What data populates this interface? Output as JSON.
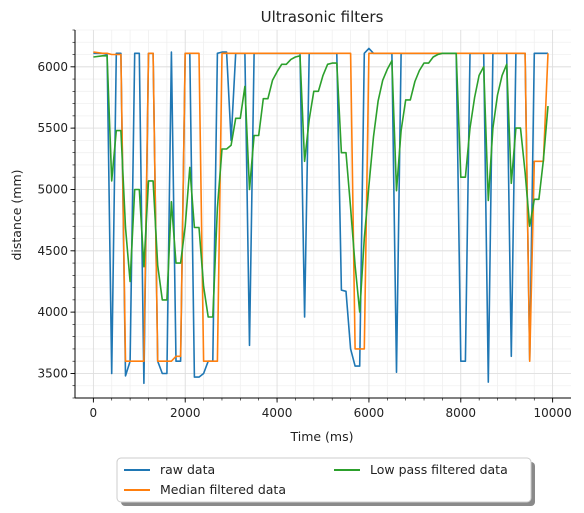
{
  "chart_data": {
    "type": "line",
    "title": "Ultrasonic filters",
    "xlabel": "Time (ms)",
    "ylabel": "distance (mm)",
    "xlim": [
      -400,
      10400
    ],
    "ylim": [
      3300,
      6300
    ],
    "xticks": [
      0,
      2000,
      4000,
      6000,
      8000,
      10000
    ],
    "yticks": [
      3500,
      4000,
      4500,
      5000,
      5500,
      6000
    ],
    "grid": true,
    "legend_position": "below-center",
    "series": [
      {
        "name": "raw data",
        "color": "#1f77b4",
        "x": [
          0,
          200,
          300,
          400,
          500,
          600,
          700,
          800,
          900,
          1000,
          1100,
          1200,
          1300,
          1400,
          1500,
          1600,
          1700,
          1800,
          1900,
          2000,
          2100,
          2200,
          2300,
          2400,
          2500,
          2600,
          2700,
          2800,
          2900,
          3000,
          3100,
          3200,
          3300,
          3400,
          3500,
          3600,
          3700,
          3800,
          3900,
          4000,
          4100,
          4200,
          4300,
          4400,
          4500,
          4600,
          4700,
          4800,
          4900,
          5000,
          5100,
          5200,
          5300,
          5400,
          5500,
          5600,
          5700,
          5800,
          5900,
          6000,
          6100,
          6200,
          6300,
          6400,
          6500,
          6600,
          6700,
          6800,
          6900,
          7000,
          7100,
          7200,
          7300,
          7400,
          7500,
          7600,
          7700,
          7800,
          7900,
          8000,
          8100,
          8200,
          8300,
          8400,
          8500,
          8600,
          8700,
          8800,
          8900,
          9000,
          9100,
          9200,
          9300,
          9400,
          9500,
          9600,
          9700,
          9800,
          9900
        ],
        "y": [
          6110,
          6110,
          6100,
          3500,
          6110,
          6110,
          3480,
          3600,
          6110,
          6110,
          3420,
          6110,
          6110,
          3600,
          3500,
          3500,
          6120,
          3600,
          3600,
          6110,
          6110,
          3470,
          3470,
          3500,
          3600,
          3600,
          6110,
          6120,
          6120,
          5400,
          6110,
          6110,
          6110,
          3730,
          6110,
          6110,
          6110,
          6110,
          6110,
          6110,
          6110,
          6110,
          6110,
          6110,
          6110,
          3960,
          6110,
          6110,
          6110,
          6110,
          6110,
          6110,
          6110,
          4180,
          4170,
          3700,
          3560,
          3560,
          6110,
          6150,
          6110,
          6110,
          6110,
          6110,
          6110,
          3510,
          6110,
          6110,
          6110,
          6110,
          6110,
          6110,
          6110,
          6110,
          6110,
          6110,
          6110,
          6110,
          6110,
          3600,
          3600,
          6110,
          6110,
          6110,
          6110,
          3430,
          6110,
          6110,
          6110,
          6110,
          3640,
          6110,
          6110,
          6110,
          3610,
          6110,
          6110,
          6110,
          6110
        ]
      },
      {
        "name": "Median filtered data",
        "color": "#ff7f0e",
        "x": [
          0,
          200,
          300,
          400,
          500,
          600,
          700,
          800,
          900,
          1000,
          1100,
          1200,
          1300,
          1400,
          1500,
          1600,
          1700,
          1800,
          1900,
          2000,
          2100,
          2200,
          2300,
          2400,
          2500,
          2600,
          2700,
          2800,
          2900,
          3000,
          3100,
          3200,
          3300,
          3400,
          3500,
          3600,
          3700,
          3800,
          3900,
          4000,
          4100,
          4200,
          4300,
          4400,
          4500,
          4600,
          4700,
          4800,
          4900,
          5000,
          5100,
          5200,
          5300,
          5400,
          5500,
          5600,
          5700,
          5800,
          5900,
          6000,
          6100,
          6200,
          6300,
          6400,
          6500,
          6600,
          6700,
          6800,
          6900,
          7000,
          7100,
          7200,
          7300,
          7400,
          7500,
          7600,
          7700,
          7800,
          7900,
          8000,
          8100,
          8200,
          8300,
          8400,
          8500,
          8600,
          8700,
          8800,
          8900,
          9000,
          9100,
          9200,
          9300,
          9400,
          9500,
          9600,
          9700,
          9800,
          9900
        ],
        "y": [
          6120,
          6110,
          6110,
          6100,
          6100,
          6100,
          3600,
          3600,
          3600,
          3600,
          3600,
          6110,
          6110,
          3600,
          3600,
          3600,
          3600,
          3640,
          3640,
          6110,
          6110,
          6110,
          6110,
          3600,
          3600,
          3600,
          3600,
          6110,
          6110,
          6110,
          6110,
          6110,
          6110,
          6110,
          6110,
          6110,
          6110,
          6110,
          6110,
          6110,
          6110,
          6110,
          6110,
          6110,
          6110,
          6110,
          6110,
          6110,
          6110,
          6110,
          6110,
          6110,
          6110,
          6110,
          6110,
          6110,
          3700,
          3700,
          3700,
          6110,
          6110,
          6110,
          6110,
          6110,
          6110,
          6110,
          6110,
          6110,
          6110,
          6110,
          6110,
          6110,
          6110,
          6110,
          6110,
          6110,
          6110,
          6110,
          6110,
          6110,
          6110,
          6110,
          6110,
          6110,
          6110,
          6110,
          6110,
          6110,
          6110,
          6110,
          6110,
          6110,
          6110,
          6110,
          3600,
          5230,
          5230,
          5230,
          6110
        ]
      },
      {
        "name": "Low pass filtered data",
        "color": "#2ca02c",
        "x": [
          0,
          200,
          300,
          400,
          500,
          600,
          700,
          800,
          900,
          1000,
          1100,
          1200,
          1300,
          1400,
          1500,
          1600,
          1700,
          1800,
          1900,
          2000,
          2100,
          2200,
          2300,
          2400,
          2500,
          2600,
          2700,
          2800,
          2900,
          3000,
          3100,
          3200,
          3300,
          3400,
          3500,
          3600,
          3700,
          3800,
          3900,
          4000,
          4100,
          4200,
          4300,
          4400,
          4500,
          4600,
          4700,
          4800,
          4900,
          5000,
          5100,
          5200,
          5300,
          5400,
          5500,
          5600,
          5700,
          5800,
          5900,
          6000,
          6100,
          6200,
          6300,
          6400,
          6500,
          6600,
          6700,
          6800,
          6900,
          7000,
          7100,
          7200,
          7300,
          7400,
          7500,
          7600,
          7700,
          7800,
          7900,
          8000,
          8100,
          8200,
          8300,
          8400,
          8500,
          8600,
          8700,
          8800,
          8900,
          9000,
          9100,
          9200,
          9300,
          9400,
          9500,
          9600,
          9700,
          9800,
          9900
        ],
        "y": [
          6080,
          6090,
          6090,
          5070,
          5480,
          5480,
          4690,
          4250,
          5000,
          5000,
          4370,
          5070,
          5070,
          4380,
          4100,
          4100,
          4900,
          4400,
          4400,
          4700,
          5180,
          4690,
          4690,
          4210,
          3960,
          3960,
          4850,
          5330,
          5330,
          5360,
          5580,
          5580,
          5840,
          5000,
          5440,
          5440,
          5740,
          5740,
          5890,
          5960,
          6020,
          6020,
          6060,
          6080,
          6090,
          5230,
          5570,
          5800,
          5800,
          5930,
          6020,
          6030,
          6030,
          5300,
          5300,
          4850,
          4380,
          4000,
          4600,
          5030,
          5430,
          5720,
          5890,
          5980,
          6050,
          4990,
          5480,
          5730,
          5730,
          5880,
          5970,
          6030,
          6030,
          6080,
          6100,
          6110,
          6110,
          6110,
          6110,
          5100,
          5100,
          5500,
          5750,
          5930,
          6000,
          4910,
          5500,
          5770,
          5930,
          6020,
          5050,
          5500,
          5500,
          5140,
          4700,
          4920,
          4920,
          5240,
          5680
        ]
      }
    ]
  }
}
